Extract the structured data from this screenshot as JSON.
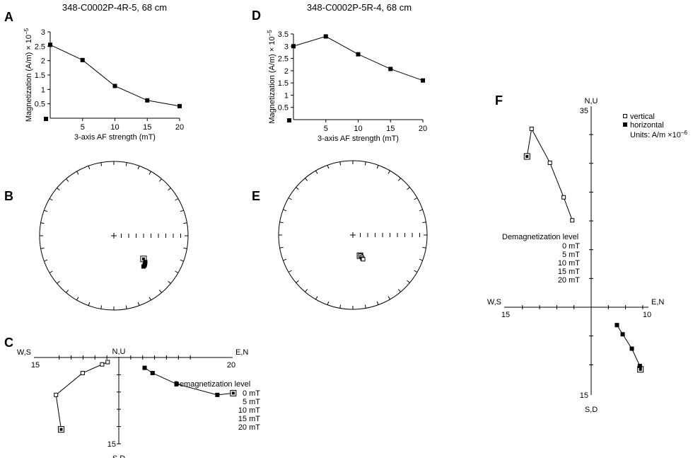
{
  "labels": {
    "A": "A",
    "B": "B",
    "C": "C",
    "D": "D",
    "E": "E",
    "F": "F"
  },
  "titles": {
    "left": "348-C0002P-4R-5, 68 cm",
    "right": "348-C0002P-5R-4, 68 cm"
  },
  "colors": {
    "ink": "#000000",
    "paper": "#ffffff"
  },
  "chart_data": [
    {
      "id": "A",
      "type": "line",
      "title": "348-C0002P-4R-5, 68 cm",
      "xlabel": "3-axis AF strength (mT)",
      "ylabel": "Magnetization (A/m) × 10",
      "ylabel_exp": "−5",
      "x": [
        0,
        5,
        10,
        15,
        20
      ],
      "values": [
        2.55,
        2.02,
        1.12,
        0.62,
        0.42
      ],
      "xlim": [
        0,
        20
      ],
      "ylim": [
        0,
        3
      ],
      "xticks": [
        5,
        10,
        15,
        20
      ],
      "yticks": [
        0.5,
        1,
        1.5,
        2,
        2.5,
        3
      ],
      "marker": "filled-square"
    },
    {
      "id": "D",
      "type": "line",
      "title": "348-C0002P-5R-4, 68 cm",
      "xlabel": "3-axis AF strength (mT)",
      "ylabel": "Magnetization (A/m) × 10",
      "ylabel_exp": "−5",
      "x": [
        0,
        5,
        10,
        15,
        20
      ],
      "values": [
        3.0,
        3.4,
        2.67,
        2.07,
        1.6
      ],
      "xlim": [
        0,
        20
      ],
      "ylim": [
        0,
        3.5
      ],
      "xticks": [
        5,
        10,
        15,
        20
      ],
      "yticks": [
        0.5,
        1,
        1.5,
        2,
        2.5,
        3,
        3.5
      ],
      "marker": "filled-square"
    },
    {
      "id": "B",
      "type": "scatter",
      "projection": "equal-area stereonet",
      "points": [
        {
          "dec": 128,
          "inc": 48,
          "hem": "lower",
          "marker": "open-square"
        },
        {
          "dec": 130,
          "inc": 44,
          "hem": "lower",
          "marker": "filled-square"
        },
        {
          "dec": 132,
          "inc": 43,
          "hem": "lower",
          "marker": "filled-square"
        },
        {
          "dec": 134,
          "inc": 42,
          "hem": "lower",
          "marker": "filled-square"
        },
        {
          "dec": 136,
          "inc": 42,
          "hem": "lower",
          "marker": "filled-square"
        }
      ]
    },
    {
      "id": "E",
      "type": "scatter",
      "projection": "equal-area stereonet",
      "points": [
        {
          "dec": 161,
          "inc": 66,
          "hem": "lower",
          "marker": "open-square"
        },
        {
          "dec": 160,
          "inc": 66,
          "hem": "lower",
          "marker": "open-square"
        },
        {
          "dec": 158,
          "inc": 64,
          "hem": "lower",
          "marker": "open-square"
        },
        {
          "dec": 158,
          "inc": 62,
          "hem": "lower",
          "marker": "open-square"
        },
        {
          "dec": 157,
          "inc": 61,
          "hem": "lower",
          "marker": "open-square"
        }
      ]
    },
    {
      "id": "C",
      "type": "scatter",
      "projection": "orthogonal vector (Zijderveld)",
      "axis_labels": {
        "left": "W,S",
        "right": "E,N",
        "top": "N,U",
        "bottom": "S,D"
      },
      "axis_ticks": {
        "left": "15",
        "right": "20",
        "bottom": "15"
      },
      "legend_title": "Demagnetization level",
      "levels": [
        "0 mT",
        "5 mT",
        "10 mT",
        "15 mT",
        "20 mT"
      ],
      "vertical": [
        [
          -14.5,
          -12.5
        ],
        [
          -15.8,
          -6.5
        ],
        [
          -9.1,
          -2.7
        ],
        [
          -4.2,
          -1.2
        ],
        [
          -2.8,
          -0.8
        ]
      ],
      "horizontal": [
        [
          28.8,
          -6.2
        ],
        [
          24.8,
          -6.5
        ],
        [
          14.5,
          -4.6
        ],
        [
          8.5,
          -2.7
        ],
        [
          6.5,
          -1.8
        ]
      ]
    },
    {
      "id": "F",
      "type": "scatter",
      "projection": "orthogonal vector (Zijderveld)",
      "axis_labels": {
        "left": "W,S",
        "right": "E,N",
        "top": "N,U",
        "bottom": "S,D"
      },
      "axis_ticks": {
        "left": "15",
        "right": "10",
        "top": "35",
        "bottom": "15"
      },
      "legend": [
        {
          "label": "vertical",
          "marker": "open-square"
        },
        {
          "label": "horizontal",
          "marker": "filled-square"
        }
      ],
      "units": "Units: A/m ×10",
      "units_exp": "−6",
      "legend_title": "Demagnetization level",
      "levels": [
        "0 mT",
        "5 mT",
        "10 mT",
        "15 mT",
        "20 mT"
      ],
      "vertical": [
        [
          -11.2,
          26.2
        ],
        [
          -10.4,
          31.0
        ],
        [
          -7.2,
          25.1
        ],
        [
          -4.8,
          19.1
        ],
        [
          -3.3,
          15.1
        ]
      ],
      "horizontal": [
        [
          8.6,
          -10.8
        ],
        [
          8.5,
          -10.2
        ],
        [
          7.1,
          -7.2
        ],
        [
          5.5,
          -4.7
        ],
        [
          4.5,
          -3.1
        ]
      ]
    }
  ]
}
